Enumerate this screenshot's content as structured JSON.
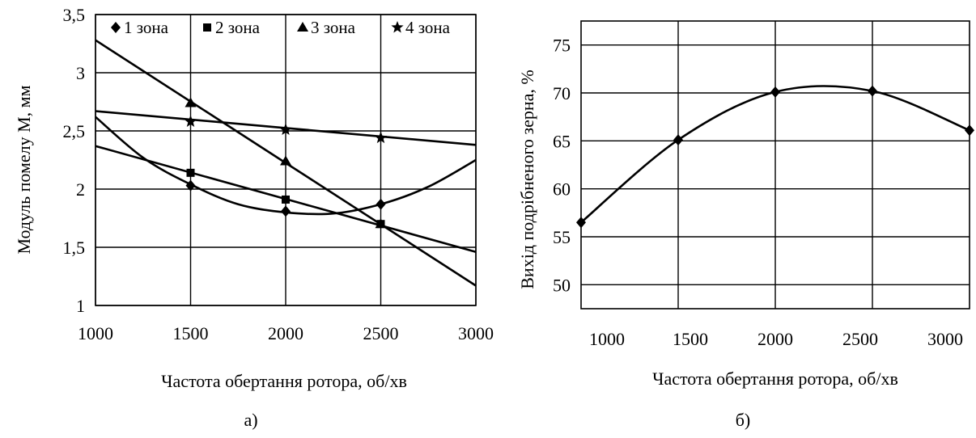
{
  "chart_data": [
    {
      "type": "line",
      "panel_label": "а)",
      "xlabel": "Частота обертання ротора, об/хв",
      "ylabel": "Модуль помелу М, мм",
      "xlim": [
        1000,
        3000
      ],
      "ylim": [
        1,
        3.5
      ],
      "x_ticks": [
        "1000",
        "1500",
        "2000",
        "2500",
        "3000"
      ],
      "y_ticks": [
        "1",
        "1,5",
        "2",
        "2,5",
        "3",
        "3,5"
      ],
      "grid": true,
      "legend_position": "top",
      "series": [
        {
          "name": "1 зона",
          "marker": "diamond",
          "points": [
            {
              "x": 1500,
              "y": 2.03
            },
            {
              "x": 2000,
              "y": 1.81
            },
            {
              "x": 2500,
              "y": 1.87
            }
          ],
          "trend": [
            {
              "x": 1000,
              "y": 2.62
            },
            {
              "x": 1250,
              "y": 2.27
            },
            {
              "x": 1500,
              "y": 2.04
            },
            {
              "x": 1750,
              "y": 1.87
            },
            {
              "x": 2000,
              "y": 1.8
            },
            {
              "x": 2250,
              "y": 1.79
            },
            {
              "x": 2500,
              "y": 1.87
            },
            {
              "x": 2750,
              "y": 2.02
            },
            {
              "x": 3000,
              "y": 2.25
            }
          ]
        },
        {
          "name": "2 зона",
          "marker": "square",
          "points": [
            {
              "x": 1500,
              "y": 2.14
            },
            {
              "x": 2000,
              "y": 1.91
            },
            {
              "x": 2500,
              "y": 1.7
            }
          ],
          "trend": [
            {
              "x": 1000,
              "y": 2.37
            },
            {
              "x": 3000,
              "y": 1.46
            }
          ]
        },
        {
          "name": "3 зона",
          "marker": "triangle",
          "points": [
            {
              "x": 1500,
              "y": 2.74
            },
            {
              "x": 2000,
              "y": 2.24
            },
            {
              "x": 2500,
              "y": 1.7
            }
          ],
          "trend": [
            {
              "x": 1000,
              "y": 3.28
            },
            {
              "x": 3000,
              "y": 1.17
            }
          ]
        },
        {
          "name": "4 зона",
          "marker": "star",
          "points": [
            {
              "x": 1500,
              "y": 2.58
            },
            {
              "x": 2000,
              "y": 2.51
            },
            {
              "x": 2500,
              "y": 2.44
            }
          ],
          "trend": [
            {
              "x": 1000,
              "y": 2.67
            },
            {
              "x": 3000,
              "y": 2.38
            }
          ]
        }
      ]
    },
    {
      "type": "line",
      "panel_label": "б)",
      "xlabel": "Частота обертання ротора, об/хв",
      "ylabel": "Вихід подрібненого зерна, %",
      "x_ticks": [
        "1000",
        "1500",
        "2000",
        "2500",
        "3000"
      ],
      "y_ticks": [
        "50",
        "55",
        "60",
        "65",
        "70",
        "75"
      ],
      "ylim": [
        47.5,
        77.5
      ],
      "grid": true,
      "series": [
        {
          "name": "",
          "marker": "diamond",
          "x": [
            1000,
            1500,
            2000,
            2500,
            3000
          ],
          "y": [
            56.5,
            65.1,
            70.1,
            70.2,
            66.1
          ]
        }
      ]
    }
  ]
}
